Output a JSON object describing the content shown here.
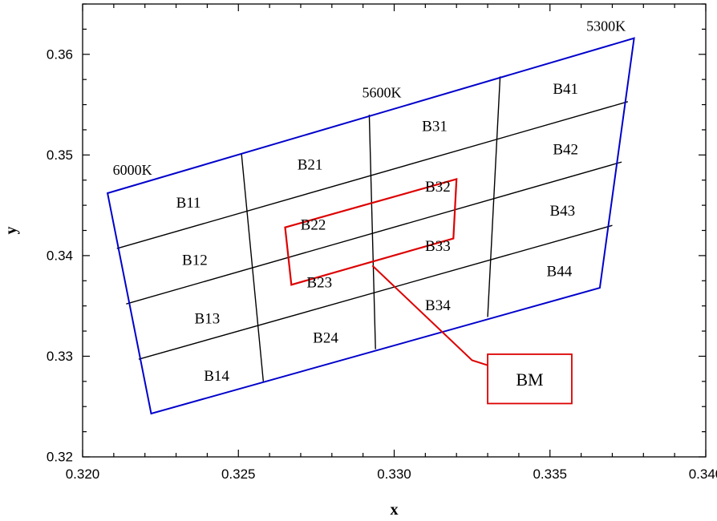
{
  "chart_data": {
    "type": "diagram",
    "xlabel": "x",
    "ylabel": "y",
    "xlim": [
      0.32,
      0.34
    ],
    "ylim": [
      0.32,
      0.365
    ],
    "x_ticks": [
      "0.320",
      "0.325",
      "0.330",
      "0.335",
      "0.340"
    ],
    "x_tick_values": [
      0.32,
      0.325,
      0.33,
      0.335,
      0.34
    ],
    "y_ticks": [
      "0.32",
      "0.33",
      "0.34",
      "0.35",
      "0.36"
    ],
    "y_tick_values": [
      0.32,
      0.33,
      0.34,
      0.35,
      0.36
    ],
    "colors": {
      "outline": "#0000cc",
      "grid": "#000000",
      "bm": "#dd0000"
    },
    "outline": [
      [
        0.3208,
        0.3462
      ],
      [
        0.3377,
        0.3616
      ],
      [
        0.3366,
        0.3368
      ],
      [
        0.3222,
        0.3243
      ]
    ],
    "horizontal_lines": [
      [
        [
          0.3211,
          0.3407
        ],
        [
          0.3375,
          0.3553
        ]
      ],
      [
        [
          0.3214,
          0.3352
        ],
        [
          0.3373,
          0.3493
        ]
      ],
      [
        [
          0.3218,
          0.3297
        ],
        [
          0.337,
          0.343
        ]
      ]
    ],
    "vertical_lines": [
      [
        [
          0.3251,
          0.3501
        ],
        [
          0.3258,
          0.3275
        ]
      ],
      [
        [
          0.3292,
          0.354
        ],
        [
          0.3294,
          0.3307
        ]
      ],
      [
        [
          0.3334,
          0.3578
        ],
        [
          0.333,
          0.3339
        ]
      ]
    ],
    "bm_region": [
      [
        0.3265,
        0.3428
      ],
      [
        0.332,
        0.3476
      ],
      [
        0.3319,
        0.3417
      ],
      [
        0.3267,
        0.3371
      ]
    ],
    "bm_leader": [
      [
        0.3293,
        0.339
      ],
      [
        0.3325,
        0.3296
      ],
      [
        0.333,
        0.3291
      ]
    ],
    "bm_box": {
      "label": "BM",
      "x0": 0.333,
      "x1": 0.3357,
      "y0": 0.3253,
      "y1": 0.3302
    },
    "cct_labels": [
      {
        "text": "6000K",
        "x": 0.3216,
        "y": 0.3485
      },
      {
        "text": "5600K",
        "x": 0.3296,
        "y": 0.3562
      },
      {
        "text": "5300K",
        "x": 0.3368,
        "y": 0.3628
      }
    ],
    "region_labels": [
      {
        "text": "B11",
        "x": 0.3234,
        "y": 0.3452
      },
      {
        "text": "B12",
        "x": 0.3236,
        "y": 0.3395
      },
      {
        "text": "B13",
        "x": 0.324,
        "y": 0.3337
      },
      {
        "text": "B14",
        "x": 0.3243,
        "y": 0.328
      },
      {
        "text": "B21",
        "x": 0.3273,
        "y": 0.349
      },
      {
        "text": "B22",
        "x": 0.3274,
        "y": 0.343
      },
      {
        "text": "B23",
        "x": 0.3276,
        "y": 0.3373
      },
      {
        "text": "B24",
        "x": 0.3278,
        "y": 0.3318
      },
      {
        "text": "B31",
        "x": 0.3313,
        "y": 0.3528
      },
      {
        "text": "B32",
        "x": 0.3314,
        "y": 0.3468
      },
      {
        "text": "B33",
        "x": 0.3314,
        "y": 0.3409
      },
      {
        "text": "B34",
        "x": 0.3314,
        "y": 0.335
      },
      {
        "text": "B41",
        "x": 0.3355,
        "y": 0.3565
      },
      {
        "text": "B42",
        "x": 0.3355,
        "y": 0.3505
      },
      {
        "text": "B43",
        "x": 0.3354,
        "y": 0.3444
      },
      {
        "text": "B44",
        "x": 0.3353,
        "y": 0.3384
      }
    ]
  }
}
